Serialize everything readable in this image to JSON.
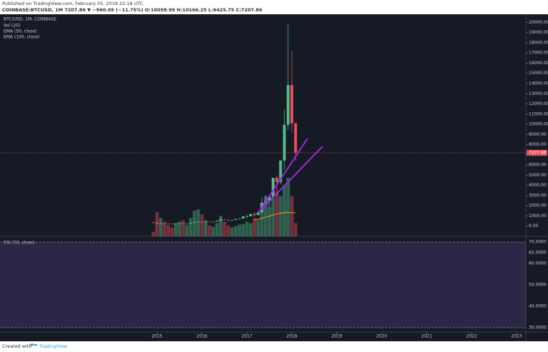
{
  "header": {
    "published": "Published on TradingView.com, February 05, 2018 22:18 UTC",
    "symbol_line": "COINBASE:BTCUSD, 1M  7207.86 ▼ −960.05 (−11.75%) O:10099.99 H:10166.25 L:6425.75 C:7207.86"
  },
  "footer": {
    "created": "Created with",
    "brand": "TradingView"
  },
  "chart_data": {
    "type": "candlestick",
    "title": "BTC/USD, 1M, COINBASE",
    "legend": [
      "Vol (20)",
      "EMA (50, close)",
      "EMA (100, close)"
    ],
    "rsi_label": "RSI (50, close)",
    "x": [
      "2014-12",
      "2015-01",
      "2015-02",
      "2015-03",
      "2015-04",
      "2015-05",
      "2015-06",
      "2015-07",
      "2015-08",
      "2015-09",
      "2015-10",
      "2015-11",
      "2015-12",
      "2016-01",
      "2016-02",
      "2016-03",
      "2016-04",
      "2016-05",
      "2016-06",
      "2016-07",
      "2016-08",
      "2016-09",
      "2016-10",
      "2016-11",
      "2016-12",
      "2017-01",
      "2017-02",
      "2017-03",
      "2017-04",
      "2017-05",
      "2017-06",
      "2017-07",
      "2017-08",
      "2017-09",
      "2017-10",
      "2017-11",
      "2017-12",
      "2018-01",
      "2018-02"
    ],
    "open": [
      370,
      320,
      217,
      254,
      244,
      236,
      230,
      263,
      284,
      230,
      236,
      314,
      377,
      430,
      369,
      437,
      416,
      448,
      531,
      673,
      624,
      574,
      609,
      701,
      742,
      966,
      970,
      1190,
      1080,
      1350,
      2300,
      2480,
      2870,
      4740,
      4340,
      6450,
      9950,
      13850,
      10099.99
    ],
    "high": [
      400,
      420,
      300,
      300,
      260,
      247,
      267,
      315,
      285,
      246,
      335,
      500,
      465,
      463,
      440,
      440,
      468,
      550,
      780,
      704,
      630,
      620,
      740,
      755,
      980,
      1150,
      1200,
      1350,
      1380,
      2790,
      3000,
      2950,
      4750,
      5000,
      6450,
      11400,
      19900,
      17200,
      10166.25
    ],
    "low": [
      310,
      160,
      212,
      235,
      215,
      225,
      220,
      253,
      200,
      225,
      236,
      300,
      350,
      350,
      368,
      395,
      415,
      440,
      520,
      600,
      540,
      570,
      605,
      690,
      740,
      750,
      940,
      900,
      1070,
      1340,
      2100,
      1830,
      2700,
      2950,
      4100,
      5500,
      9400,
      9200,
      6425.75
    ],
    "close": [
      320,
      217,
      254,
      244,
      236,
      230,
      263,
      284,
      230,
      236,
      314,
      377,
      430,
      369,
      437,
      416,
      448,
      531,
      673,
      624,
      574,
      609,
      701,
      742,
      966,
      970,
      1190,
      1080,
      1350,
      2300,
      2480,
      2870,
      4740,
      4340,
      6450,
      9950,
      13850,
      10099.99,
      7207.86
    ],
    "volume": [
      60,
      330,
      250,
      200,
      150,
      120,
      180,
      200,
      220,
      150,
      250,
      350,
      370,
      300,
      220,
      150,
      130,
      180,
      280,
      200,
      150,
      120,
      140,
      160,
      170,
      200,
      180,
      250,
      220,
      450,
      550,
      400,
      520,
      600,
      550,
      700,
      800,
      550,
      180
    ],
    "ema_line": {
      "color": "#ff9800",
      "values": [
        null,
        null,
        null,
        null,
        null,
        null,
        null,
        null,
        null,
        null,
        null,
        null,
        null,
        null,
        null,
        null,
        null,
        null,
        null,
        null,
        null,
        null,
        null,
        null,
        null,
        null,
        null,
        600,
        680,
        780,
        880,
        980,
        1100,
        1200,
        1280,
        1330,
        1350,
        1330,
        1300
      ]
    },
    "up_color": "#53b987",
    "down_color": "#eb4d5c",
    "ylim": [
      -1000,
      20800
    ],
    "yticks": [
      {
        "value": 0,
        "label": "0.00"
      },
      {
        "value": 1000,
        "label": "1000.00"
      },
      {
        "value": 2000,
        "label": "2000.00"
      },
      {
        "value": 3000,
        "label": "3000.00"
      },
      {
        "value": 4000,
        "label": "4000.00"
      },
      {
        "value": 5000,
        "label": "5000.00"
      },
      {
        "value": 6000,
        "label": "6000.00"
      },
      {
        "value": 7000,
        "label": "7000.00"
      },
      {
        "value": 8000,
        "label": "8000.00"
      },
      {
        "value": 9000,
        "label": "9000.00"
      },
      {
        "value": 10000,
        "label": "10000.00"
      },
      {
        "value": 11000,
        "label": "11000.00"
      },
      {
        "value": 12000,
        "label": "12000.00"
      },
      {
        "value": 13000,
        "label": "13000.00"
      },
      {
        "value": 14000,
        "label": "14000.00"
      },
      {
        "value": 15000,
        "label": "15000.00"
      },
      {
        "value": 16000,
        "label": "16000.00"
      },
      {
        "value": 17000,
        "label": "17000.00"
      },
      {
        "value": 18000,
        "label": "18000.00"
      },
      {
        "value": 19000,
        "label": "19000.00"
      },
      {
        "value": 20000,
        "label": "20000.00"
      }
    ],
    "xlim": [
      2011.508,
      2023.206
    ],
    "xticks": [
      2015,
      2016,
      2017,
      2018,
      2019,
      2020,
      2021,
      2022,
      2023
    ],
    "rsi_lim": [
      28,
      72
    ],
    "rsi_ticks": [
      {
        "value": 30,
        "label": "30.0000"
      },
      {
        "value": 40,
        "label": "40.0000"
      },
      {
        "value": 50,
        "label": "50.0000"
      },
      {
        "value": 60,
        "label": "60.0000"
      },
      {
        "value": 65,
        "label": "65.0000"
      },
      {
        "value": 70,
        "label": "70.0000"
      }
    ],
    "rsi_band": [
      30,
      70
    ]
  }
}
